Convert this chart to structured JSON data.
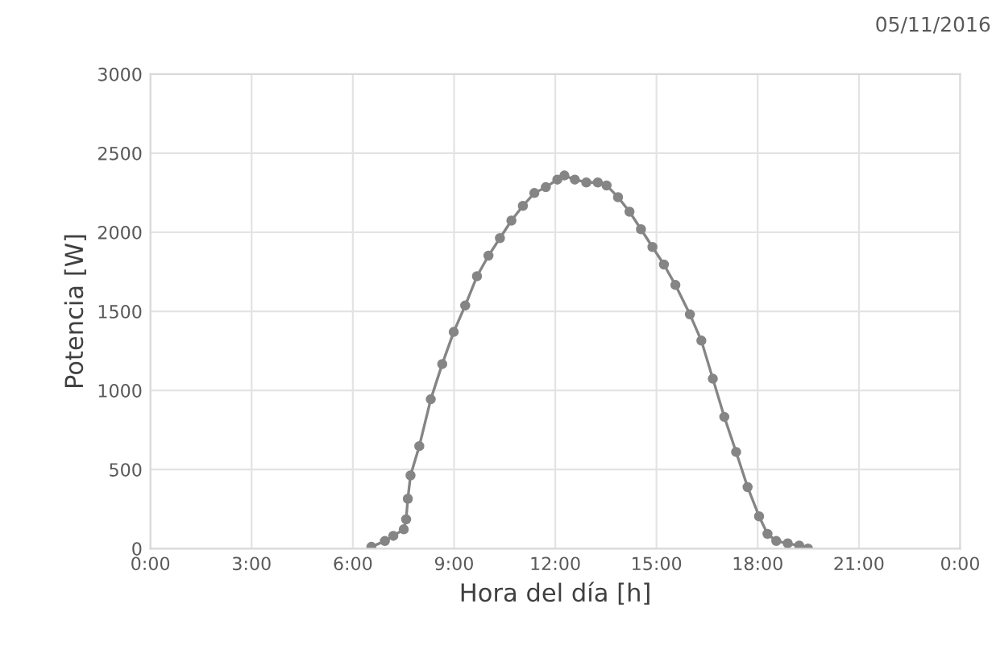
{
  "chart_data": {
    "type": "line",
    "xlabel": "Hora del día [h]",
    "ylabel": "Potencia [W]",
    "annotations": [
      "05/11/2016"
    ],
    "series": [
      {
        "color": "#858585",
        "x": [
          6.55,
          6.95,
          7.2,
          7.51,
          7.58,
          7.63,
          7.71,
          7.97,
          8.31,
          8.65,
          8.99,
          9.33,
          9.68,
          10.02,
          10.36,
          10.7,
          11.04,
          11.38,
          11.72,
          12.06,
          12.27,
          12.58,
          12.92,
          13.26,
          13.52,
          13.86,
          14.2,
          14.54,
          14.88,
          15.22,
          15.56,
          15.99,
          16.33,
          16.67,
          17.01,
          17.36,
          17.7,
          18.04,
          18.29,
          18.55,
          18.89,
          19.23,
          19.49
        ],
        "values": [
          11,
          48,
          81,
          122,
          185,
          315,
          463,
          648,
          944,
          1167,
          1370,
          1537,
          1722,
          1852,
          1963,
          2074,
          2167,
          2248,
          2285,
          2333,
          2359,
          2333,
          2315,
          2315,
          2296,
          2222,
          2130,
          2019,
          1907,
          1796,
          1667,
          1481,
          1315,
          1074,
          833,
          611,
          389,
          204,
          93,
          48,
          33,
          19,
          0
        ]
      }
    ],
    "xlim": [
      0,
      24
    ],
    "xticks": [
      {
        "value": 0,
        "label": "0:00"
      },
      {
        "value": 3,
        "label": "3:00"
      },
      {
        "value": 6,
        "label": "6:00"
      },
      {
        "value": 9,
        "label": "9:00"
      },
      {
        "value": 12,
        "label": "12:00"
      },
      {
        "value": 15,
        "label": "15:00"
      },
      {
        "value": 18,
        "label": "18:00"
      },
      {
        "value": 21,
        "label": "21:00"
      },
      {
        "value": 24,
        "label": "0:00"
      }
    ],
    "ylim": [
      0,
      3000
    ],
    "yticks": [
      0,
      500,
      1000,
      1500,
      2000,
      2500,
      3000
    ],
    "grid": true,
    "marker": "circle",
    "line_style": "solid"
  }
}
